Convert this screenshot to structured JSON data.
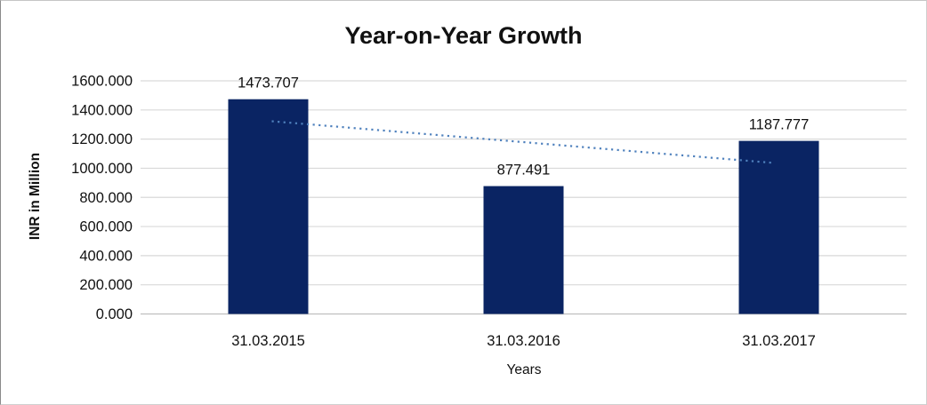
{
  "chart_data": {
    "type": "bar",
    "title": "Year-on-Year Growth",
    "xlabel": "Years",
    "ylabel": "INR in Million",
    "categories": [
      "31.03.2015",
      "31.03.2016",
      "31.03.2017"
    ],
    "values": [
      1473.707,
      877.491,
      1187.777
    ],
    "data_labels": [
      "1473.707",
      "877.491",
      "1187.777"
    ],
    "ylim": [
      0,
      1600
    ],
    "ytick_step": 200,
    "ytick_labels": [
      "0.000",
      "200.000",
      "400.000",
      "600.000",
      "800.000",
      "1000.000",
      "1200.000",
      "1400.000",
      "1600.000"
    ],
    "grid": true,
    "legend": "none",
    "trendline": {
      "style": "dotted",
      "shape": "linear",
      "endpoint_values": [
        1322.6,
        1036.7
      ]
    },
    "colors": {
      "bar": "#0A2463",
      "trendline": "#4F81BD",
      "gridline": "#D9D9D9",
      "axis_line": "#BFBFBF",
      "text": "#111111"
    }
  }
}
